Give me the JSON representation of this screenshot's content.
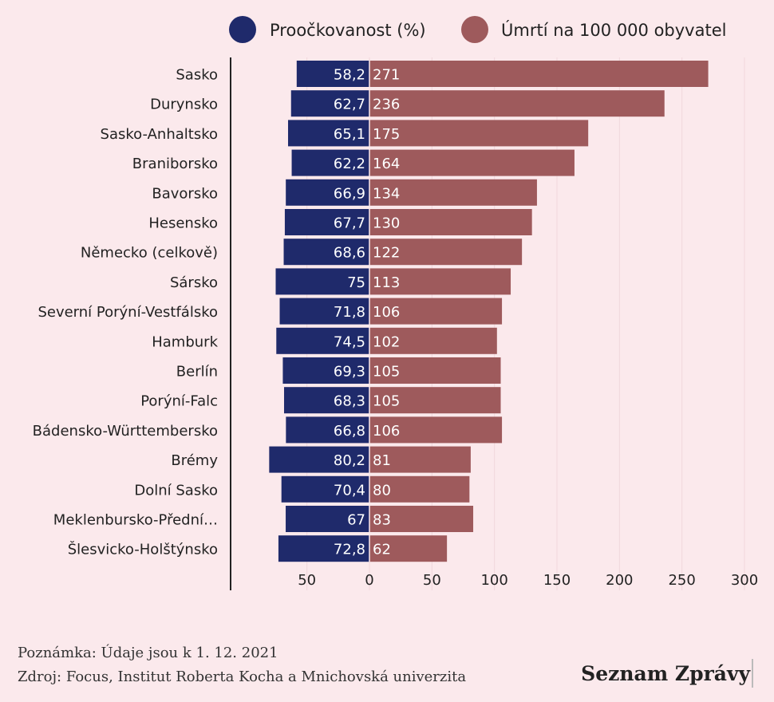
{
  "chart_data": {
    "type": "bar",
    "orientation": "horizontal",
    "layout": "diverging",
    "categories": [
      "Sasko",
      "Durynsko",
      "Sasko-Anhaltsko",
      "Braniborsko",
      "Bavorsko",
      "Hesensko",
      "Německo (celkově)",
      "Sársko",
      "Severní Porýní-Vestfálsko",
      "Hamburk",
      "Berlín",
      "Porýní-Falc",
      "Bádensko-Württembersko",
      "Brémy",
      "Dolní Sasko",
      "Meklenbursko-Přední…",
      "Šlesvicko-Holštýnsko"
    ],
    "series": [
      {
        "name": "Proočkovanost (%)",
        "color": "#1f2a6b",
        "side": "left",
        "values": [
          58.2,
          62.7,
          65.1,
          62.2,
          66.9,
          67.7,
          68.6,
          75,
          71.8,
          74.5,
          69.3,
          68.3,
          66.8,
          80.2,
          70.4,
          67,
          72.8
        ],
        "labels": [
          "58,2",
          "62,7",
          "65,1",
          "62,2",
          "66,9",
          "67,7",
          "68,6",
          "75",
          "71,8",
          "74,5",
          "69,3",
          "68,3",
          "66,8",
          "80,2",
          "70,4",
          "67",
          "72,8"
        ]
      },
      {
        "name": "Úmrtí na 100 000 obyvatel",
        "color": "#9e5a5c",
        "side": "right",
        "values": [
          271,
          236,
          175,
          164,
          134,
          130,
          122,
          113,
          106,
          102,
          105,
          105,
          106,
          81,
          80,
          83,
          62
        ],
        "labels": [
          "271",
          "236",
          "175",
          "164",
          "134",
          "130",
          "122",
          "113",
          "106",
          "102",
          "105",
          "105",
          "106",
          "81",
          "80",
          "83",
          "62"
        ]
      }
    ],
    "x_ticks": [
      {
        "value": -50,
        "label": "50"
      },
      {
        "value": 0,
        "label": "0"
      },
      {
        "value": 50,
        "label": "50"
      },
      {
        "value": 100,
        "label": "100"
      },
      {
        "value": 150,
        "label": "150"
      },
      {
        "value": 200,
        "label": "200"
      },
      {
        "value": 250,
        "label": "250"
      },
      {
        "value": 300,
        "label": "300"
      }
    ],
    "xlim": [
      -100,
      300
    ],
    "grid": true,
    "legend_position": "top-right"
  },
  "footer": {
    "note": "Poznámka: Údaje jsou k 1. 12. 2021",
    "source": "Zdroj: Focus, Institut Roberta Kocha a Mnichovská univerzita",
    "brand": "Seznam Zprávy"
  }
}
